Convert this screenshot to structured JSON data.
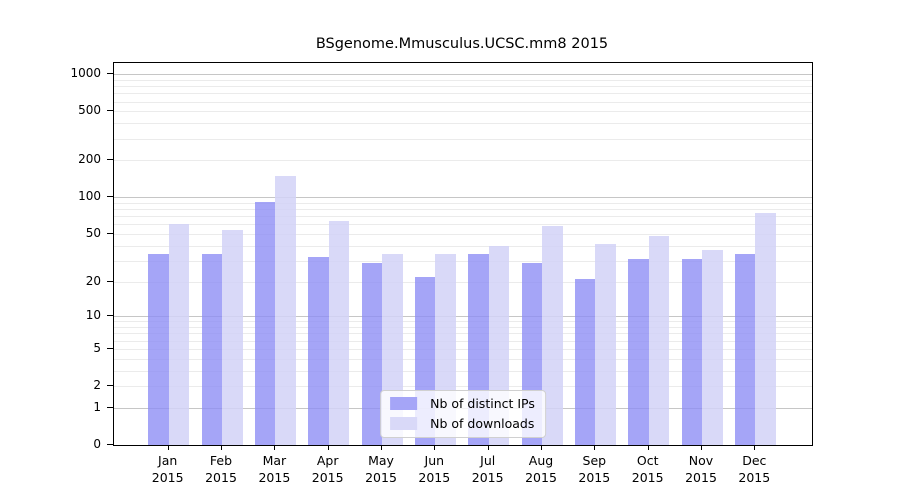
{
  "title": "BSgenome.Mmusculus.UCSC.mm8 2015",
  "colors": {
    "ips_fill": "rgba(140,140,245,0.78)",
    "downloads_fill": "rgba(210,210,247,0.85)",
    "ips_solid": "#a5a5f7",
    "downloads_solid": "#d9d9f8",
    "gridline_major": "#c6c6c6",
    "gridline_minor": "#ebebeb",
    "spine": "#000000"
  },
  "legend": {
    "items": [
      {
        "label": "Nb of distinct IPs",
        "color_key": "ips_solid"
      },
      {
        "label": "Nb of downloads",
        "color_key": "downloads_solid"
      }
    ]
  },
  "axis": {
    "y_scale": {
      "type": "log1p",
      "display_max": 1234
    },
    "y_ticks": [
      {
        "value": 0,
        "label": "0"
      },
      {
        "value": 1,
        "label": "1"
      },
      {
        "value": 2,
        "label": "2"
      },
      {
        "value": 5,
        "label": "5"
      },
      {
        "value": 10,
        "label": "10"
      },
      {
        "value": 20,
        "label": "20"
      },
      {
        "value": 50,
        "label": "50"
      },
      {
        "value": 100,
        "label": "100"
      },
      {
        "value": 200,
        "label": "200"
      },
      {
        "value": 500,
        "label": "500"
      },
      {
        "value": 1000,
        "label": "1000"
      }
    ],
    "y_major_gridlines": [
      1,
      10,
      100,
      1000
    ],
    "y_minor_gridlines": [
      2,
      3,
      4,
      5,
      6,
      7,
      8,
      9,
      20,
      30,
      40,
      50,
      60,
      70,
      80,
      90,
      200,
      300,
      400,
      500,
      600,
      700,
      800,
      900
    ],
    "x_ticks": [
      {
        "month": "Jan",
        "year": "2015"
      },
      {
        "month": "Feb",
        "year": "2015"
      },
      {
        "month": "Mar",
        "year": "2015"
      },
      {
        "month": "Apr",
        "year": "2015"
      },
      {
        "month": "May",
        "year": "2015"
      },
      {
        "month": "Jun",
        "year": "2015"
      },
      {
        "month": "Jul",
        "year": "2015"
      },
      {
        "month": "Aug",
        "year": "2015"
      },
      {
        "month": "Sep",
        "year": "2015"
      },
      {
        "month": "Oct",
        "year": "2015"
      },
      {
        "month": "Nov",
        "year": "2015"
      },
      {
        "month": "Dec",
        "year": "2015"
      }
    ]
  },
  "chart_data": {
    "type": "bar",
    "title": "BSgenome.Mmusculus.UCSC.mm8 2015",
    "categories": [
      "Jan 2015",
      "Feb 2015",
      "Mar 2015",
      "Apr 2015",
      "May 2015",
      "Jun 2015",
      "Jul 2015",
      "Aug 2015",
      "Sep 2015",
      "Oct 2015",
      "Nov 2015",
      "Dec 2015"
    ],
    "series": [
      {
        "name": "Nb of distinct IPs",
        "values": [
          34,
          34,
          91,
          32,
          29,
          22,
          34,
          29,
          21,
          31,
          31,
          34
        ]
      },
      {
        "name": "Nb of downloads",
        "values": [
          60,
          54,
          150,
          64,
          34,
          34,
          40,
          58,
          41,
          48,
          37,
          75
        ]
      }
    ],
    "xlabel": "",
    "ylabel": "",
    "yscale": "log1p (custom ticks 0,1,2,5,10,20,50,100,200,500,1000)",
    "ylim": [
      0,
      1234
    ],
    "grid": "horizontal, log minor + major decade lines",
    "legend_position": "lower center"
  }
}
